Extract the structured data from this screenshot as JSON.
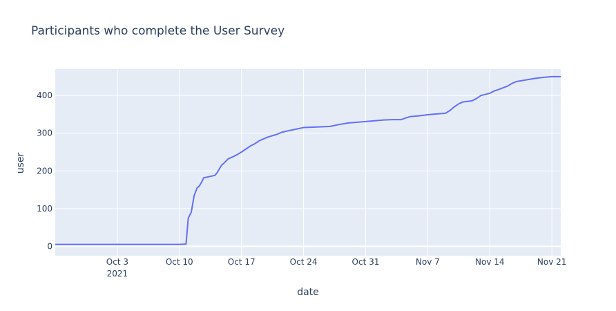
{
  "chart_data": {
    "type": "line",
    "title": "Participants who complete the User Survey",
    "xlabel": "date",
    "ylabel": "user",
    "xlim": [
      "2021-09-26",
      "2021-11-22"
    ],
    "ylim": [
      -25,
      470
    ],
    "x_ticks": [
      {
        "date": "2021-10-03",
        "label": "Oct 3",
        "sublabel": "2021"
      },
      {
        "date": "2021-10-10",
        "label": "Oct 10"
      },
      {
        "date": "2021-10-17",
        "label": "Oct 17"
      },
      {
        "date": "2021-10-24",
        "label": "Oct 24"
      },
      {
        "date": "2021-10-31",
        "label": "Oct 31"
      },
      {
        "date": "2021-11-07",
        "label": "Nov 7"
      },
      {
        "date": "2021-11-14",
        "label": "Nov 14"
      },
      {
        "date": "2021-11-21",
        "label": "Nov 21"
      }
    ],
    "y_ticks": [
      0,
      100,
      200,
      300,
      400
    ],
    "grid": true,
    "colors": {
      "plot_bg": "#e5ecf6",
      "grid": "#ffffff",
      "line": "#636efa",
      "text": "#2a3f5f"
    },
    "series": [
      {
        "x": [
          "2021-09-26",
          "2021-10-09",
          "2021-10-10",
          "2021-10-10 18:00",
          "2021-10-11",
          "2021-10-11 08:00",
          "2021-10-11 16:00",
          "2021-10-12",
          "2021-10-12 06:00",
          "2021-10-12 12:00",
          "2021-10-12 18:00",
          "2021-10-13",
          "2021-10-14",
          "2021-10-14 06:00",
          "2021-10-14 12:00",
          "2021-10-14 18:00",
          "2021-10-15",
          "2021-10-15 12:00",
          "2021-10-16",
          "2021-10-16 12:00",
          "2021-10-17",
          "2021-10-17 12:00",
          "2021-10-18",
          "2021-10-18 12:00",
          "2021-10-19",
          "2021-10-19 12:00",
          "2021-10-20",
          "2021-10-21",
          "2021-10-21 12:00",
          "2021-10-22",
          "2021-10-23",
          "2021-10-24",
          "2021-10-25",
          "2021-10-26",
          "2021-10-27",
          "2021-10-28",
          "2021-10-29",
          "2021-10-31",
          "2021-11-01",
          "2021-11-02",
          "2021-11-03",
          "2021-11-04",
          "2021-11-05",
          "2021-11-06",
          "2021-11-07",
          "2021-11-08",
          "2021-11-09",
          "2021-11-09 12:00",
          "2021-11-10",
          "2021-11-10 12:00",
          "2021-11-11",
          "2021-11-12",
          "2021-11-12 12:00",
          "2021-11-13",
          "2021-11-14",
          "2021-11-14 12:00",
          "2021-11-15",
          "2021-11-16",
          "2021-11-16 12:00",
          "2021-11-17",
          "2021-11-18",
          "2021-11-19",
          "2021-11-20",
          "2021-11-21",
          "2021-11-22"
        ],
        "y": [
          5,
          5,
          5,
          6,
          75,
          90,
          135,
          155,
          160,
          170,
          182,
          183,
          188,
          195,
          205,
          215,
          220,
          232,
          237,
          243,
          250,
          258,
          266,
          272,
          280,
          285,
          290,
          297,
          302,
          305,
          310,
          315,
          316,
          317,
          318,
          323,
          327,
          331,
          333,
          335,
          336,
          336,
          344,
          346,
          349,
          351,
          353,
          360,
          370,
          378,
          383,
          386,
          392,
          400,
          406,
          412,
          416,
          425,
          432,
          437,
          441,
          445,
          448,
          450,
          450
        ]
      }
    ]
  }
}
